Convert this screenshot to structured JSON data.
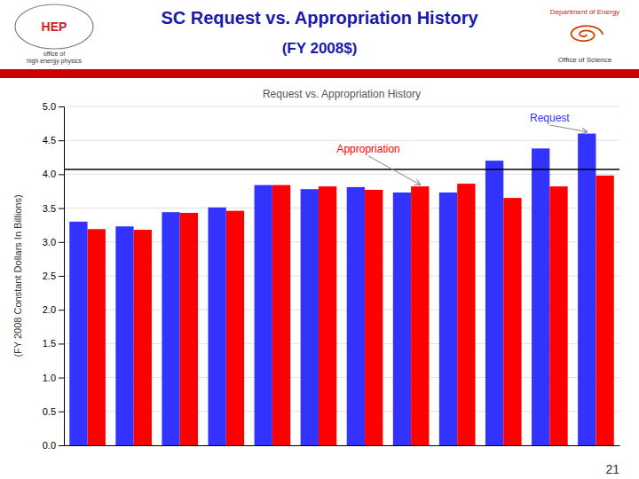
{
  "chart_data": {
    "type": "bar",
    "title": "SC Request vs. Appropriation History",
    "subtitle": "(FY 2008$)",
    "chart_title": "Request vs. Appropriation History",
    "ylabel": "(FY 2008 Constant Dollars In Billions)",
    "categories": [
      null,
      null,
      null,
      null,
      null,
      null,
      null,
      null,
      null,
      null,
      null,
      null
    ],
    "series": [
      {
        "name": "Request",
        "color": "#3333ff",
        "values": [
          3.3,
          3.23,
          3.44,
          3.51,
          3.84,
          3.78,
          3.81,
          3.73,
          3.73,
          4.2,
          4.38,
          4.6
        ]
      },
      {
        "name": "Appropriation",
        "color": "#ff0000",
        "values": [
          3.19,
          3.18,
          3.43,
          3.46,
          3.84,
          3.82,
          3.77,
          3.82,
          3.86,
          3.65,
          3.82,
          3.98
        ]
      }
    ],
    "ylim": [
      0.0,
      5.0
    ],
    "yticks": [
      {
        "value": 0,
        "label": "0.0"
      },
      0.5,
      {
        "value": 1,
        "label": "1.0"
      },
      1.5,
      {
        "value": 2,
        "label": "2.0"
      },
      2.5,
      {
        "value": 3,
        "label": "3.0"
      },
      3.5,
      {
        "value": 4,
        "label": "4.0"
      },
      4.5,
      {
        "value": 5,
        "label": "5.0"
      }
    ],
    "reference_line": 4.07,
    "grid": true,
    "tick_labels": "y",
    "annotations": [
      "HEP",
      "office of\nhigh energy physics",
      "Department of Energy",
      "Office of Science"
    ],
    "page_number": "21"
  }
}
